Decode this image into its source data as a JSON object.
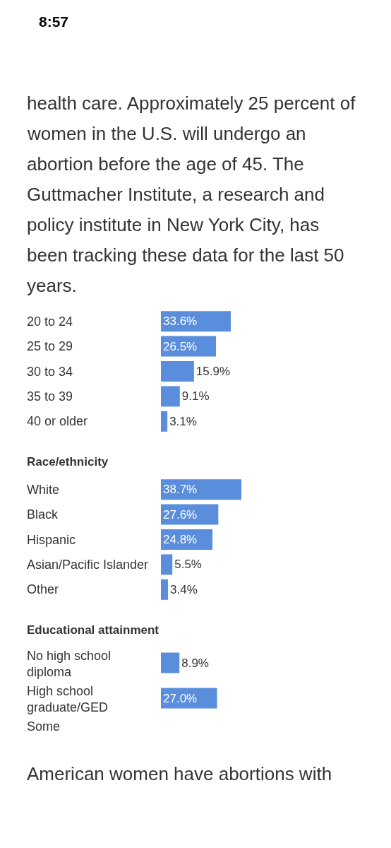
{
  "chart_data": [
    {
      "type": "other",
      "annotations": [
        "8:57",
        "health care. Approximately 25 percent of women in the U.S. will undergo an abortion before the age of 45. The Guttmacher Institute, a research and policy institute in New York City, has been tracking these data for the last 50 years."
      ]
    },
    {
      "type": "bar",
      "orientation": "horizontal",
      "categories": [
        "20 to 24",
        "25 to 29",
        "30 to 34",
        "35 to 39",
        "40 or older"
      ],
      "values": [
        33.6,
        26.5,
        15.9,
        9.1,
        3.1
      ],
      "value_labels": [
        "33.6%",
        "26.5%",
        "15.9%",
        "9.1%",
        "3.1%"
      ],
      "color": "#5a8ddc",
      "tick_labels": "y"
    },
    {
      "type": "bar",
      "orientation": "horizontal",
      "title": "Race/ethnicity",
      "categories": [
        "White",
        "Black",
        "Hispanic",
        "Asian/Pacific Islander",
        "Other"
      ],
      "values": [
        38.7,
        27.6,
        24.8,
        5.5,
        3.4
      ],
      "value_labels": [
        "38.7%",
        "27.6%",
        "24.8%",
        "5.5%",
        "3.4%"
      ],
      "color": "#5a8ddc",
      "tick_labels": "y"
    },
    {
      "type": "bar",
      "orientation": "horizontal",
      "title": "Educational attainment",
      "categories": [
        "No high school\ndiploma",
        "High school\ngraduate/GED",
        "Some"
      ],
      "values": [
        8.9,
        27.0,
        null
      ],
      "value_labels": [
        "8.9%",
        "27.0%",
        null
      ],
      "color": "#5a8ddc",
      "tick_labels": "y",
      "annotations": [
        "American women have abortions with"
      ]
    }
  ]
}
